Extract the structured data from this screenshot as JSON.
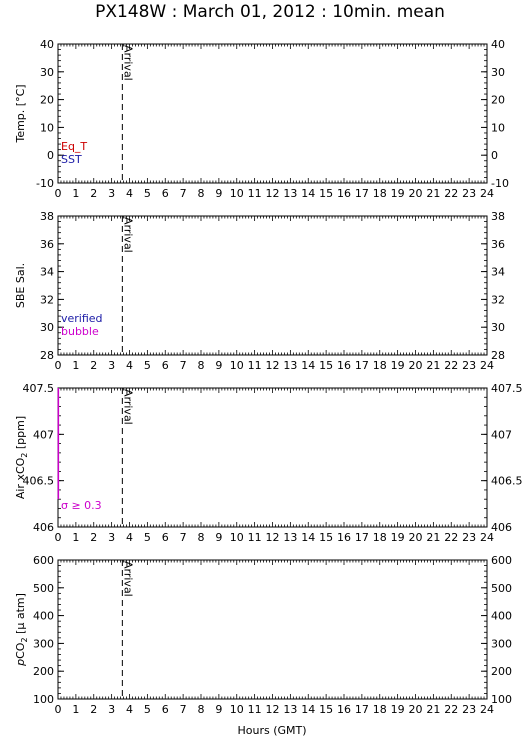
{
  "title": "PX148W : March 01, 2012 : 10min. mean",
  "xlabel": "Hours (GMT)",
  "colors": {
    "eq_t": "#cc0000",
    "sst": "#1a1aa6",
    "verified": "#1a1aa6",
    "bubble": "#cc00cc",
    "sigma": "#cc00cc"
  },
  "chart_data": [
    {
      "type": "line",
      "ylabel": "Temp. [°C]",
      "xlim": [
        0,
        24
      ],
      "ylim": [
        -10,
        40
      ],
      "xticks": [
        0,
        1,
        2,
        3,
        4,
        5,
        6,
        7,
        8,
        9,
        10,
        11,
        12,
        13,
        14,
        15,
        16,
        17,
        18,
        19,
        20,
        21,
        22,
        23,
        24
      ],
      "yticks": [
        -10,
        0,
        10,
        20,
        30,
        40
      ],
      "legend": [
        "Eq_T",
        "SST"
      ],
      "event": {
        "label": "Arrival",
        "x": 3.6
      },
      "series": []
    },
    {
      "type": "line",
      "ylabel": "SBE Sal.",
      "xlim": [
        0,
        24
      ],
      "ylim": [
        28,
        38
      ],
      "xticks": [
        0,
        1,
        2,
        3,
        4,
        5,
        6,
        7,
        8,
        9,
        10,
        11,
        12,
        13,
        14,
        15,
        16,
        17,
        18,
        19,
        20,
        21,
        22,
        23,
        24
      ],
      "yticks": [
        28,
        30,
        32,
        34,
        36,
        38
      ],
      "legend": [
        "verified",
        "bubble"
      ],
      "event": {
        "label": "Arrival",
        "x": 3.6
      },
      "series": []
    },
    {
      "type": "line",
      "ylabel": "Air xCO",
      "ylabel_sub": "2",
      "ylabel_unit": " [ppm]",
      "xlim": [
        0,
        24
      ],
      "ylim": [
        406,
        407.5
      ],
      "xticks": [
        0,
        1,
        2,
        3,
        4,
        5,
        6,
        7,
        8,
        9,
        10,
        11,
        12,
        13,
        14,
        15,
        16,
        17,
        18,
        19,
        20,
        21,
        22,
        23,
        24
      ],
      "yticks": [
        "406",
        "406.5",
        "407",
        "407.5"
      ],
      "ytick_values": [
        406,
        406.5,
        407,
        407.5
      ],
      "legend": [
        "σ ≥ 0.3"
      ],
      "event": {
        "label": "Arrival",
        "x": 3.6
      },
      "series": [
        {
          "x": [
            0.02,
            0.02
          ],
          "y": [
            406.3,
            407.5
          ]
        }
      ]
    },
    {
      "type": "line",
      "ylabel_pre": "p",
      "ylabel": "CO",
      "ylabel_sub": "2",
      "ylabel_unit": " [μ atm]",
      "xlim": [
        0,
        24
      ],
      "ylim": [
        100,
        600
      ],
      "xticks": [
        0,
        1,
        2,
        3,
        4,
        5,
        6,
        7,
        8,
        9,
        10,
        11,
        12,
        13,
        14,
        15,
        16,
        17,
        18,
        19,
        20,
        21,
        22,
        23,
        24
      ],
      "yticks": [
        100,
        200,
        300,
        400,
        500,
        600
      ],
      "legend": [],
      "event": {
        "label": "Arrival",
        "x": 3.6
      },
      "series": []
    }
  ]
}
